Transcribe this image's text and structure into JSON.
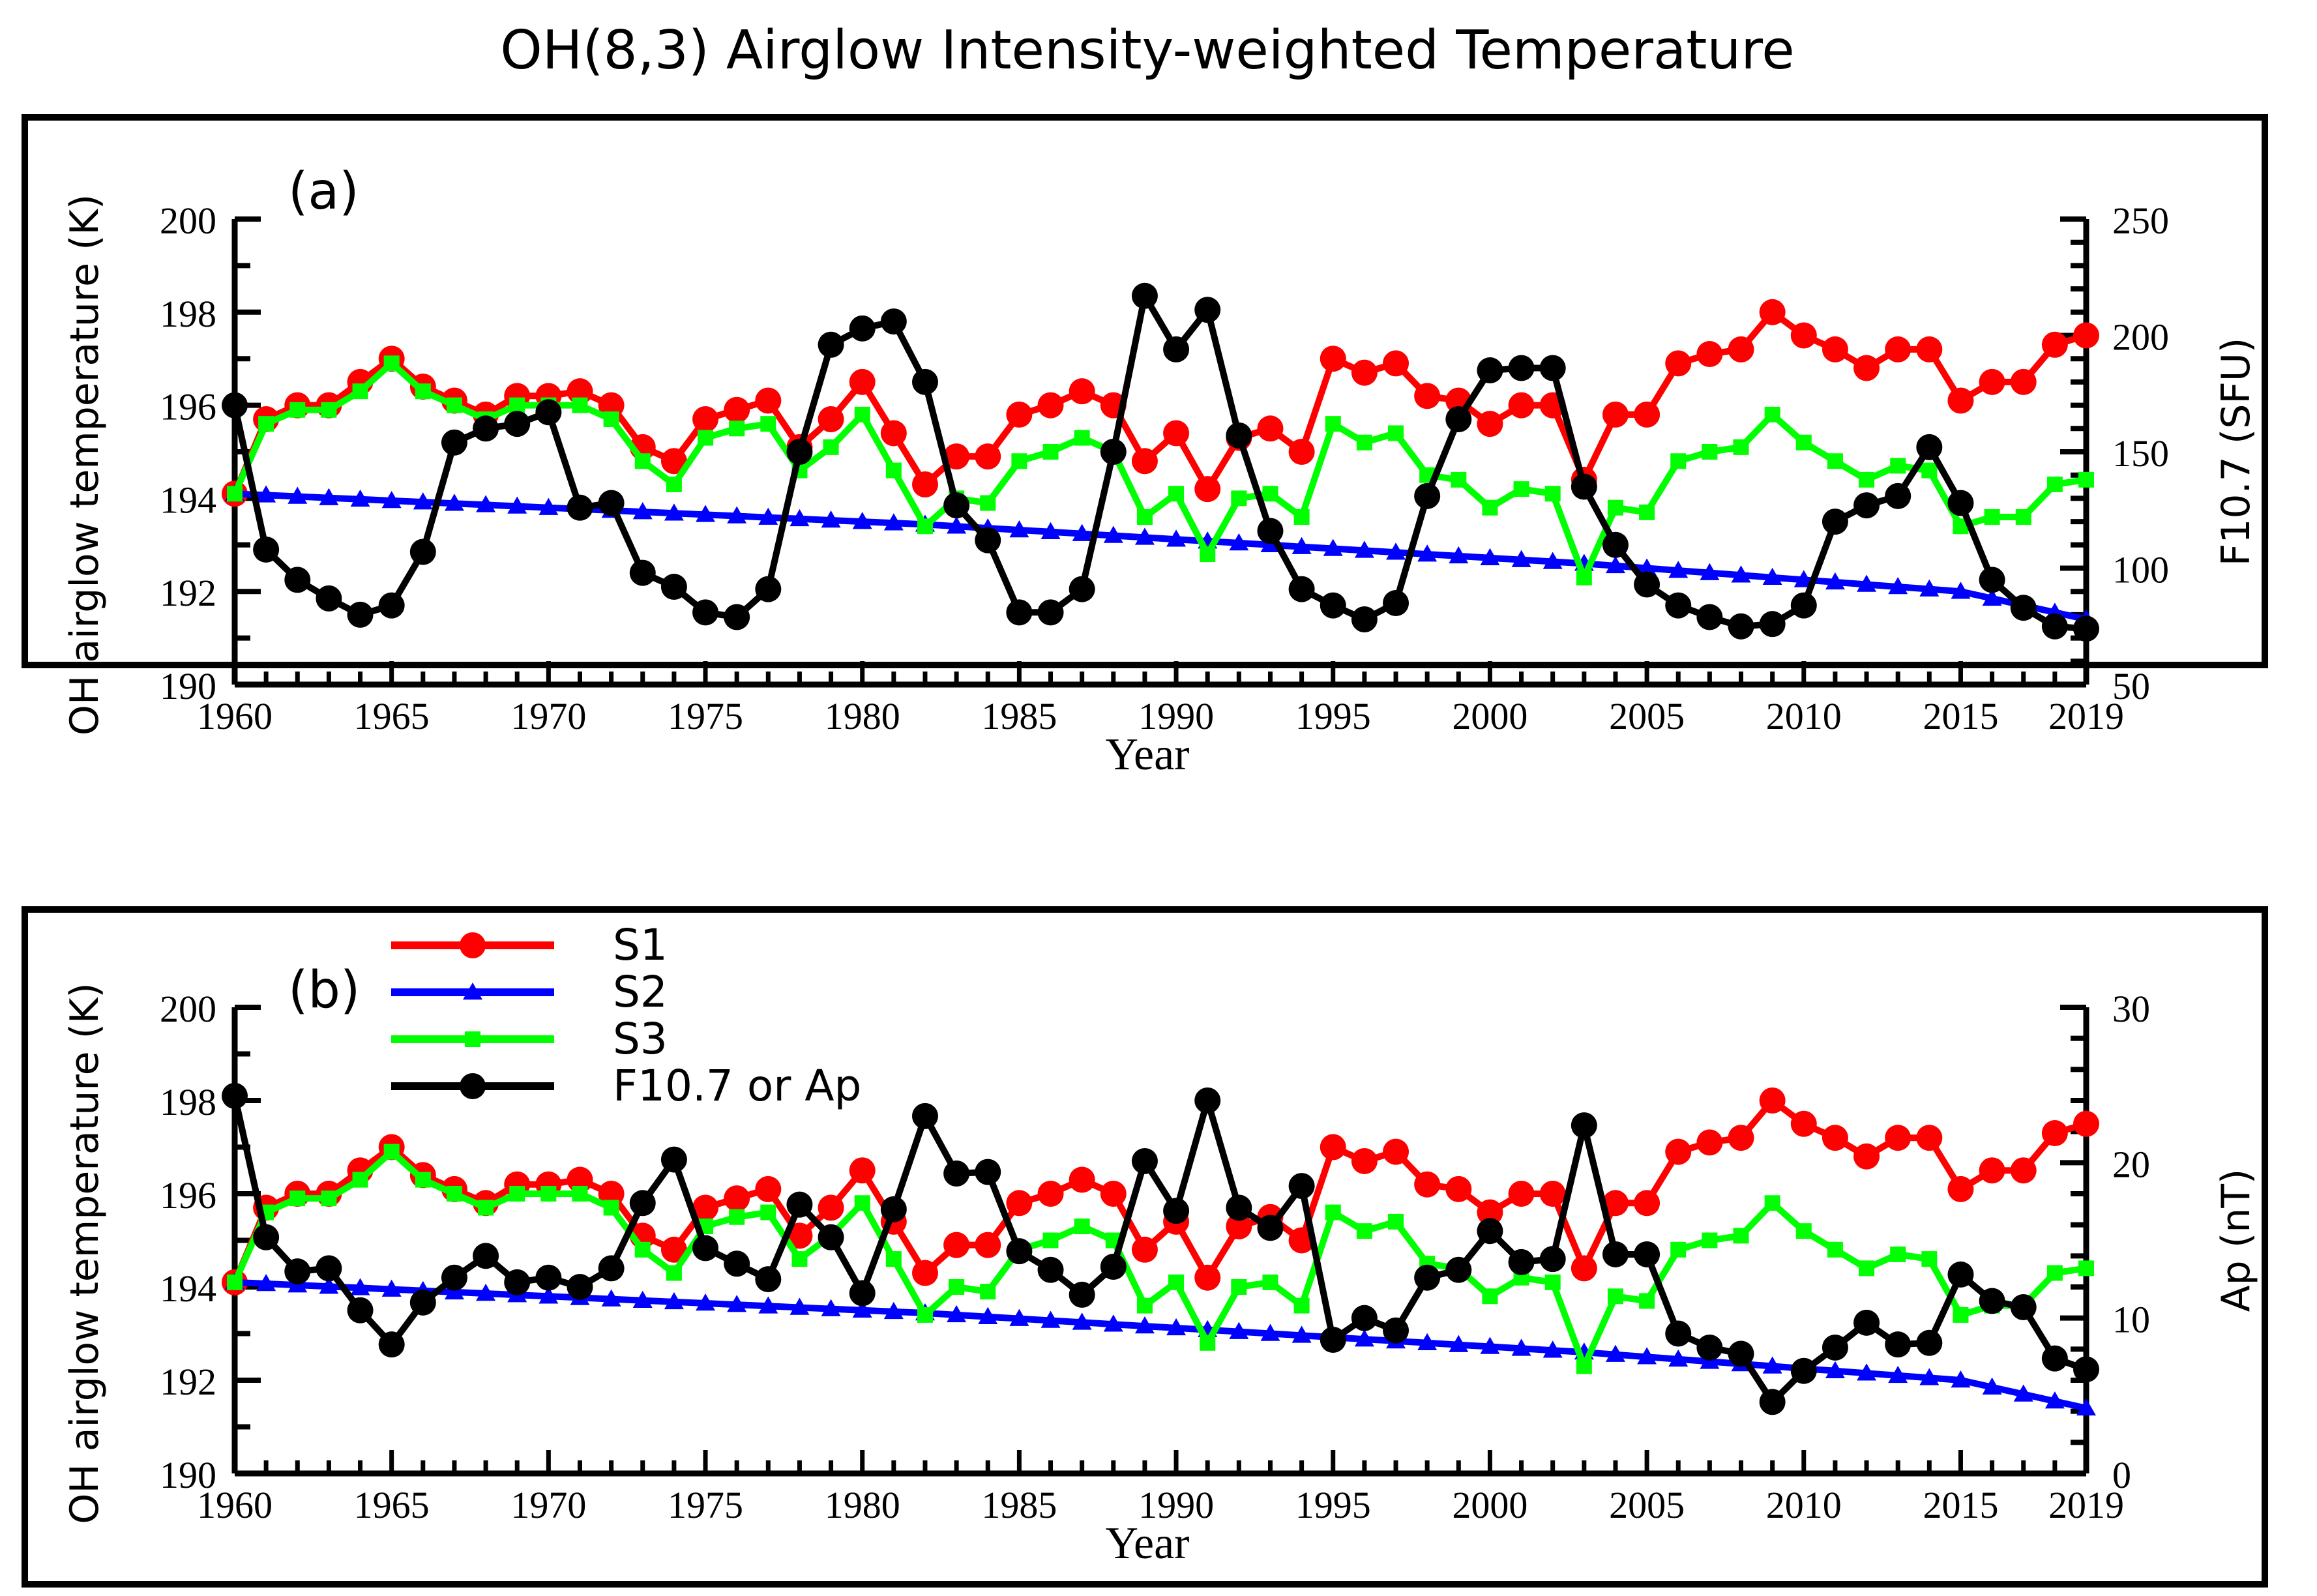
{
  "figure": {
    "title": "OH(8,3) Airglow Intensity-weighted Temperature"
  },
  "legend": {
    "items": [
      {
        "label": "S1",
        "color": "#ff0000",
        "marker": "circle"
      },
      {
        "label": "S2",
        "color": "#0000ff",
        "marker": "triangle"
      },
      {
        "label": "S3",
        "color": "#00ff00",
        "marker": "square"
      },
      {
        "label": "F10.7 or Ap",
        "color": "#000000",
        "marker": "circle"
      }
    ]
  },
  "chart_data": [
    {
      "type": "line",
      "panel_label": "(a)",
      "xlabel": "Year",
      "ylabel": "OH airglow temperature (K)",
      "y2label": "F10.7 (SFU)",
      "xlim": [
        1960,
        2019
      ],
      "ylim": [
        190,
        200
      ],
      "y2lim": [
        50,
        250
      ],
      "xticks": [
        1960,
        1965,
        1970,
        1975,
        1980,
        1985,
        1990,
        1995,
        2000,
        2005,
        2010,
        2015,
        2019
      ],
      "yticks": [
        190,
        192,
        194,
        196,
        198,
        200
      ],
      "y2ticks": [
        50,
        100,
        150,
        200,
        250
      ],
      "x": [
        1960,
        1961,
        1962,
        1963,
        1964,
        1965,
        1966,
        1967,
        1968,
        1969,
        1970,
        1971,
        1972,
        1973,
        1974,
        1975,
        1976,
        1977,
        1978,
        1979,
        1980,
        1981,
        1982,
        1983,
        1984,
        1985,
        1986,
        1987,
        1988,
        1989,
        1990,
        1991,
        1992,
        1993,
        1994,
        1995,
        1996,
        1997,
        1998,
        1999,
        2000,
        2001,
        2002,
        2003,
        2004,
        2005,
        2006,
        2007,
        2008,
        2009,
        2010,
        2011,
        2012,
        2013,
        2014,
        2015,
        2016,
        2017,
        2018,
        2019
      ],
      "series": [
        {
          "name": "S1",
          "axis": "left",
          "color": "#ff0000",
          "marker": "circle",
          "values": [
            194.1,
            195.7,
            196.0,
            196.0,
            196.5,
            197.0,
            196.4,
            196.1,
            195.8,
            196.2,
            196.2,
            196.3,
            196.0,
            195.1,
            194.8,
            195.7,
            195.9,
            196.1,
            195.1,
            195.7,
            196.5,
            195.4,
            194.3,
            194.9,
            194.9,
            195.8,
            196.0,
            196.3,
            196.0,
            194.8,
            195.4,
            194.2,
            195.3,
            195.5,
            195.0,
            197.0,
            196.7,
            196.9,
            196.2,
            196.1,
            195.6,
            196.0,
            196.0,
            194.4,
            195.8,
            195.8,
            196.9,
            197.1,
            197.2,
            198.0,
            197.5,
            197.2,
            196.8,
            197.2,
            197.2,
            196.1,
            196.5,
            196.5,
            197.3,
            197.5
          ]
        },
        {
          "name": "S2",
          "axis": "left",
          "color": "#0000ff",
          "marker": "triangle",
          "values": [
            194.1,
            194.07,
            194.04,
            194.01,
            193.98,
            193.95,
            193.92,
            193.89,
            193.86,
            193.83,
            193.8,
            193.77,
            193.74,
            193.71,
            193.68,
            193.65,
            193.62,
            193.59,
            193.56,
            193.53,
            193.5,
            193.47,
            193.44,
            193.4,
            193.36,
            193.32,
            193.28,
            193.24,
            193.2,
            193.16,
            193.12,
            193.08,
            193.04,
            193.0,
            192.96,
            192.92,
            192.88,
            192.84,
            192.8,
            192.76,
            192.72,
            192.68,
            192.64,
            192.6,
            192.55,
            192.5,
            192.45,
            192.4,
            192.35,
            192.3,
            192.25,
            192.2,
            192.15,
            192.1,
            192.05,
            192.0,
            191.85,
            191.7,
            191.55,
            191.4
          ]
        },
        {
          "name": "S3",
          "axis": "left",
          "color": "#00ff00",
          "marker": "square",
          "values": [
            194.1,
            195.6,
            195.9,
            195.9,
            196.3,
            196.9,
            196.3,
            196.0,
            195.7,
            196.0,
            196.0,
            196.0,
            195.7,
            194.8,
            194.3,
            195.3,
            195.5,
            195.6,
            194.6,
            195.1,
            195.8,
            194.6,
            193.4,
            194.0,
            193.9,
            194.8,
            195.0,
            195.3,
            195.0,
            193.6,
            194.1,
            192.8,
            194.0,
            194.1,
            193.6,
            195.6,
            195.2,
            195.4,
            194.5,
            194.4,
            193.8,
            194.2,
            194.1,
            192.3,
            193.8,
            193.7,
            194.8,
            195.0,
            195.1,
            195.8,
            195.2,
            194.8,
            194.4,
            194.7,
            194.6,
            193.4,
            193.6,
            193.6,
            194.3,
            194.4
          ]
        },
        {
          "name": "F10.7 or Ap",
          "axis": "right",
          "color": "#000000",
          "marker": "circle",
          "values": [
            170,
            108,
            95,
            87,
            80,
            84,
            107,
            154,
            160,
            162,
            167,
            126,
            128,
            98,
            92,
            81,
            79,
            91,
            150,
            196,
            203,
            206,
            180,
            127,
            112,
            81,
            81,
            91,
            150,
            217,
            194,
            211,
            157,
            116,
            91,
            84,
            78,
            85,
            131,
            164,
            185,
            186,
            186,
            135,
            110,
            93,
            84,
            79,
            75,
            76,
            84,
            120,
            127,
            131,
            152,
            128,
            95,
            83,
            75,
            74
          ]
        }
      ]
    },
    {
      "type": "line",
      "panel_label": "(b)",
      "xlabel": "Year",
      "ylabel": "OH airglow temperature (K)",
      "y2label": "Ap (nT)",
      "xlim": [
        1960,
        2019
      ],
      "ylim": [
        190,
        200
      ],
      "y2lim": [
        0,
        30
      ],
      "xticks": [
        1960,
        1965,
        1970,
        1975,
        1980,
        1985,
        1990,
        1995,
        2000,
        2005,
        2010,
        2015,
        2019
      ],
      "yticks": [
        190,
        192,
        194,
        196,
        198,
        200
      ],
      "y2ticks": [
        0,
        10,
        20,
        30
      ],
      "x": [
        1960,
        1961,
        1962,
        1963,
        1964,
        1965,
        1966,
        1967,
        1968,
        1969,
        1970,
        1971,
        1972,
        1973,
        1974,
        1975,
        1976,
        1977,
        1978,
        1979,
        1980,
        1981,
        1982,
        1983,
        1984,
        1985,
        1986,
        1987,
        1988,
        1989,
        1990,
        1991,
        1992,
        1993,
        1994,
        1995,
        1996,
        1997,
        1998,
        1999,
        2000,
        2001,
        2002,
        2003,
        2004,
        2005,
        2006,
        2007,
        2008,
        2009,
        2010,
        2011,
        2012,
        2013,
        2014,
        2015,
        2016,
        2017,
        2018,
        2019
      ],
      "series": [
        {
          "name": "S1",
          "axis": "left",
          "color": "#ff0000",
          "marker": "circle",
          "values": [
            194.1,
            195.7,
            196.0,
            196.0,
            196.5,
            197.0,
            196.4,
            196.1,
            195.8,
            196.2,
            196.2,
            196.3,
            196.0,
            195.1,
            194.8,
            195.7,
            195.9,
            196.1,
            195.1,
            195.7,
            196.5,
            195.4,
            194.3,
            194.9,
            194.9,
            195.8,
            196.0,
            196.3,
            196.0,
            194.8,
            195.4,
            194.2,
            195.3,
            195.5,
            195.0,
            197.0,
            196.7,
            196.9,
            196.2,
            196.1,
            195.6,
            196.0,
            196.0,
            194.4,
            195.8,
            195.8,
            196.9,
            197.1,
            197.2,
            198.0,
            197.5,
            197.2,
            196.8,
            197.2,
            197.2,
            196.1,
            196.5,
            196.5,
            197.3,
            197.5
          ]
        },
        {
          "name": "S2",
          "axis": "left",
          "color": "#0000ff",
          "marker": "triangle",
          "values": [
            194.1,
            194.07,
            194.04,
            194.01,
            193.98,
            193.95,
            193.92,
            193.89,
            193.86,
            193.83,
            193.8,
            193.77,
            193.74,
            193.71,
            193.68,
            193.65,
            193.62,
            193.59,
            193.56,
            193.53,
            193.5,
            193.47,
            193.44,
            193.4,
            193.36,
            193.32,
            193.28,
            193.24,
            193.2,
            193.16,
            193.12,
            193.08,
            193.04,
            193.0,
            192.96,
            192.92,
            192.88,
            192.84,
            192.8,
            192.76,
            192.72,
            192.68,
            192.64,
            192.6,
            192.55,
            192.5,
            192.45,
            192.4,
            192.35,
            192.3,
            192.25,
            192.2,
            192.15,
            192.1,
            192.05,
            192.0,
            191.85,
            191.7,
            191.55,
            191.4
          ]
        },
        {
          "name": "S3",
          "axis": "left",
          "color": "#00ff00",
          "marker": "square",
          "values": [
            194.1,
            195.6,
            195.9,
            195.9,
            196.3,
            196.9,
            196.3,
            196.0,
            195.7,
            196.0,
            196.0,
            196.0,
            195.7,
            194.8,
            194.3,
            195.3,
            195.5,
            195.6,
            194.6,
            195.1,
            195.8,
            194.6,
            193.4,
            194.0,
            193.9,
            194.8,
            195.0,
            195.3,
            195.0,
            193.6,
            194.1,
            192.8,
            194.0,
            194.1,
            193.6,
            195.6,
            195.2,
            195.4,
            194.5,
            194.4,
            193.8,
            194.2,
            194.1,
            192.3,
            193.8,
            193.7,
            194.8,
            195.0,
            195.1,
            195.8,
            195.2,
            194.8,
            194.4,
            194.7,
            194.6,
            193.4,
            193.6,
            193.6,
            194.3,
            194.4
          ]
        },
        {
          "name": "F10.7 or Ap",
          "axis": "right",
          "color": "#000000",
          "marker": "circle",
          "values": [
            24.3,
            15.2,
            13.0,
            13.2,
            10.5,
            8.3,
            11.0,
            12.6,
            14.0,
            12.3,
            12.6,
            12.0,
            13.2,
            17.4,
            20.2,
            14.5,
            13.5,
            12.5,
            17.3,
            15.2,
            11.6,
            17.0,
            23.0,
            19.3,
            19.4,
            14.3,
            13.1,
            11.5,
            13.3,
            20.1,
            16.9,
            24.0,
            17.1,
            15.8,
            18.5,
            8.6,
            10.0,
            9.2,
            12.6,
            13.1,
            15.6,
            13.6,
            13.8,
            22.4,
            14.1,
            14.1,
            9.0,
            8.1,
            7.7,
            4.6,
            6.6,
            8.1,
            9.7,
            8.3,
            8.4,
            12.8,
            11.1,
            10.7,
            7.4,
            6.7
          ]
        }
      ]
    }
  ]
}
